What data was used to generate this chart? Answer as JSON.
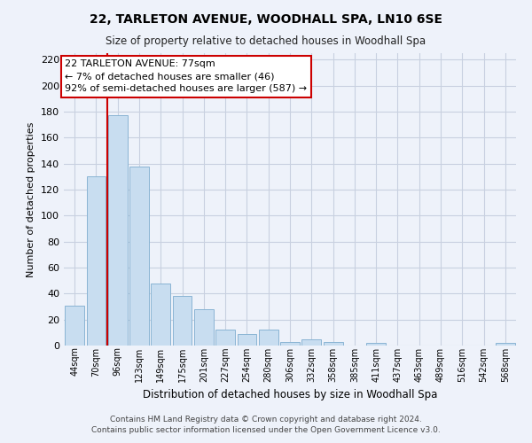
{
  "title": "22, TARLETON AVENUE, WOODHALL SPA, LN10 6SE",
  "subtitle": "Size of property relative to detached houses in Woodhall Spa",
  "xlabel": "Distribution of detached houses by size in Woodhall Spa",
  "ylabel": "Number of detached properties",
  "bar_labels": [
    "44sqm",
    "70sqm",
    "96sqm",
    "123sqm",
    "149sqm",
    "175sqm",
    "201sqm",
    "227sqm",
    "254sqm",
    "280sqm",
    "306sqm",
    "332sqm",
    "358sqm",
    "385sqm",
    "411sqm",
    "437sqm",
    "463sqm",
    "489sqm",
    "516sqm",
    "542sqm",
    "568sqm"
  ],
  "bar_heights": [
    31,
    130,
    177,
    138,
    48,
    38,
    28,
    12,
    9,
    12,
    3,
    5,
    3,
    0,
    2,
    0,
    0,
    0,
    0,
    0,
    2
  ],
  "bar_color": "#c8ddf0",
  "bar_edge_color": "#8ab4d4",
  "annotation_title": "22 TARLETON AVENUE: 77sqm",
  "annotation_line1": "← 7% of detached houses are smaller (46)",
  "annotation_line2": "92% of semi-detached houses are larger (587) →",
  "annotation_box_color": "#ffffff",
  "annotation_box_edge": "#cc0000",
  "property_line_color": "#cc0000",
  "ylim": [
    0,
    225
  ],
  "yticks": [
    0,
    20,
    40,
    60,
    80,
    100,
    120,
    140,
    160,
    180,
    200,
    220
  ],
  "footer_line1": "Contains HM Land Registry data © Crown copyright and database right 2024.",
  "footer_line2": "Contains public sector information licensed under the Open Government Licence v3.0.",
  "bg_color": "#eef2fa",
  "grid_color": "#c8d0e0"
}
